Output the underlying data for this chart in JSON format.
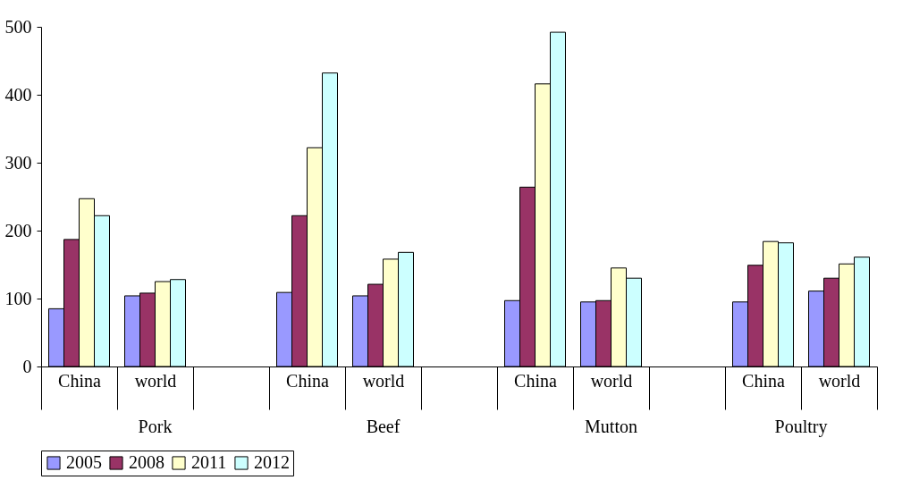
{
  "chart_data": {
    "type": "bar",
    "categories": [
      "China",
      "world",
      null,
      "China",
      "world",
      null,
      "China",
      "world",
      null,
      "China",
      "world"
    ],
    "annotations": [
      "Pork",
      "Beef",
      "Mutton",
      "Poultry"
    ],
    "series": [
      {
        "name": "2005",
        "color": "#9999ff",
        "values": [
          85,
          104,
          null,
          109,
          104,
          null,
          97,
          95,
          null,
          95,
          111
        ]
      },
      {
        "name": "2008",
        "color": "#993366",
        "values": [
          187,
          108,
          null,
          222,
          121,
          null,
          264,
          97,
          null,
          149,
          130
        ]
      },
      {
        "name": "2011",
        "color": "#ffffcc",
        "values": [
          247,
          125,
          null,
          322,
          158,
          null,
          416,
          145,
          null,
          184,
          151
        ]
      },
      {
        "name": "2012",
        "color": "#ccffff",
        "values": [
          222,
          128,
          null,
          432,
          168,
          null,
          492,
          130,
          null,
          182,
          161
        ]
      }
    ],
    "ylim": [
      0,
      500
    ],
    "yticks": [
      0,
      100,
      200,
      300,
      400,
      500
    ],
    "legend": "bottom"
  }
}
